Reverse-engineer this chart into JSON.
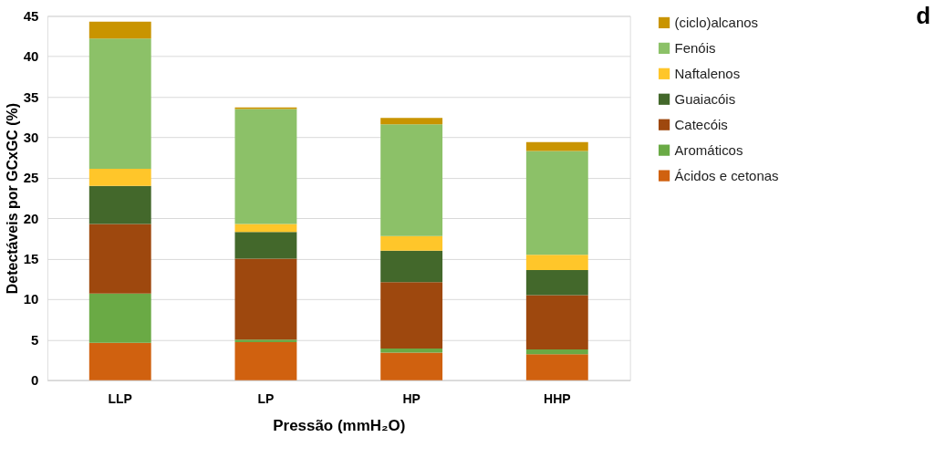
{
  "chart_data": {
    "type": "bar",
    "stacked": true,
    "categories": [
      "LLP",
      "LP",
      "HP",
      "HHP"
    ],
    "series": [
      {
        "name": "Ácidos e cetonas",
        "color": "#d0610f",
        "values": [
          4.6,
          4.7,
          3.4,
          3.2
        ]
      },
      {
        "name": "Aromáticos",
        "color": "#6aaa45",
        "values": [
          6.1,
          0.3,
          0.5,
          0.6
        ]
      },
      {
        "name": "Catecóis",
        "color": "#9e480e",
        "values": [
          8.6,
          10.0,
          8.2,
          6.7
        ]
      },
      {
        "name": "Guaiacóis",
        "color": "#43682b",
        "values": [
          4.7,
          3.3,
          3.9,
          3.1
        ]
      },
      {
        "name": "Naftalenos",
        "color": "#ffc62a",
        "values": [
          2.1,
          1.0,
          1.8,
          1.9
        ]
      },
      {
        "name": "Fenóis",
        "color": "#8cc168",
        "values": [
          16.1,
          14.2,
          13.8,
          12.8
        ]
      },
      {
        "name": "(ciclo)alcanos",
        "color": "#c99400",
        "values": [
          2.1,
          0.2,
          0.8,
          1.1
        ]
      }
    ],
    "ylim": [
      0,
      45
    ],
    "yticks": [
      0,
      5,
      10,
      15,
      20,
      25,
      30,
      35,
      40,
      45
    ],
    "ylabel": "Detectáveis por GCxGC (%)",
    "xlabel": "Pressão (mmH₂O)",
    "grid": "y",
    "legend": "right",
    "annotations": [
      "d"
    ]
  }
}
